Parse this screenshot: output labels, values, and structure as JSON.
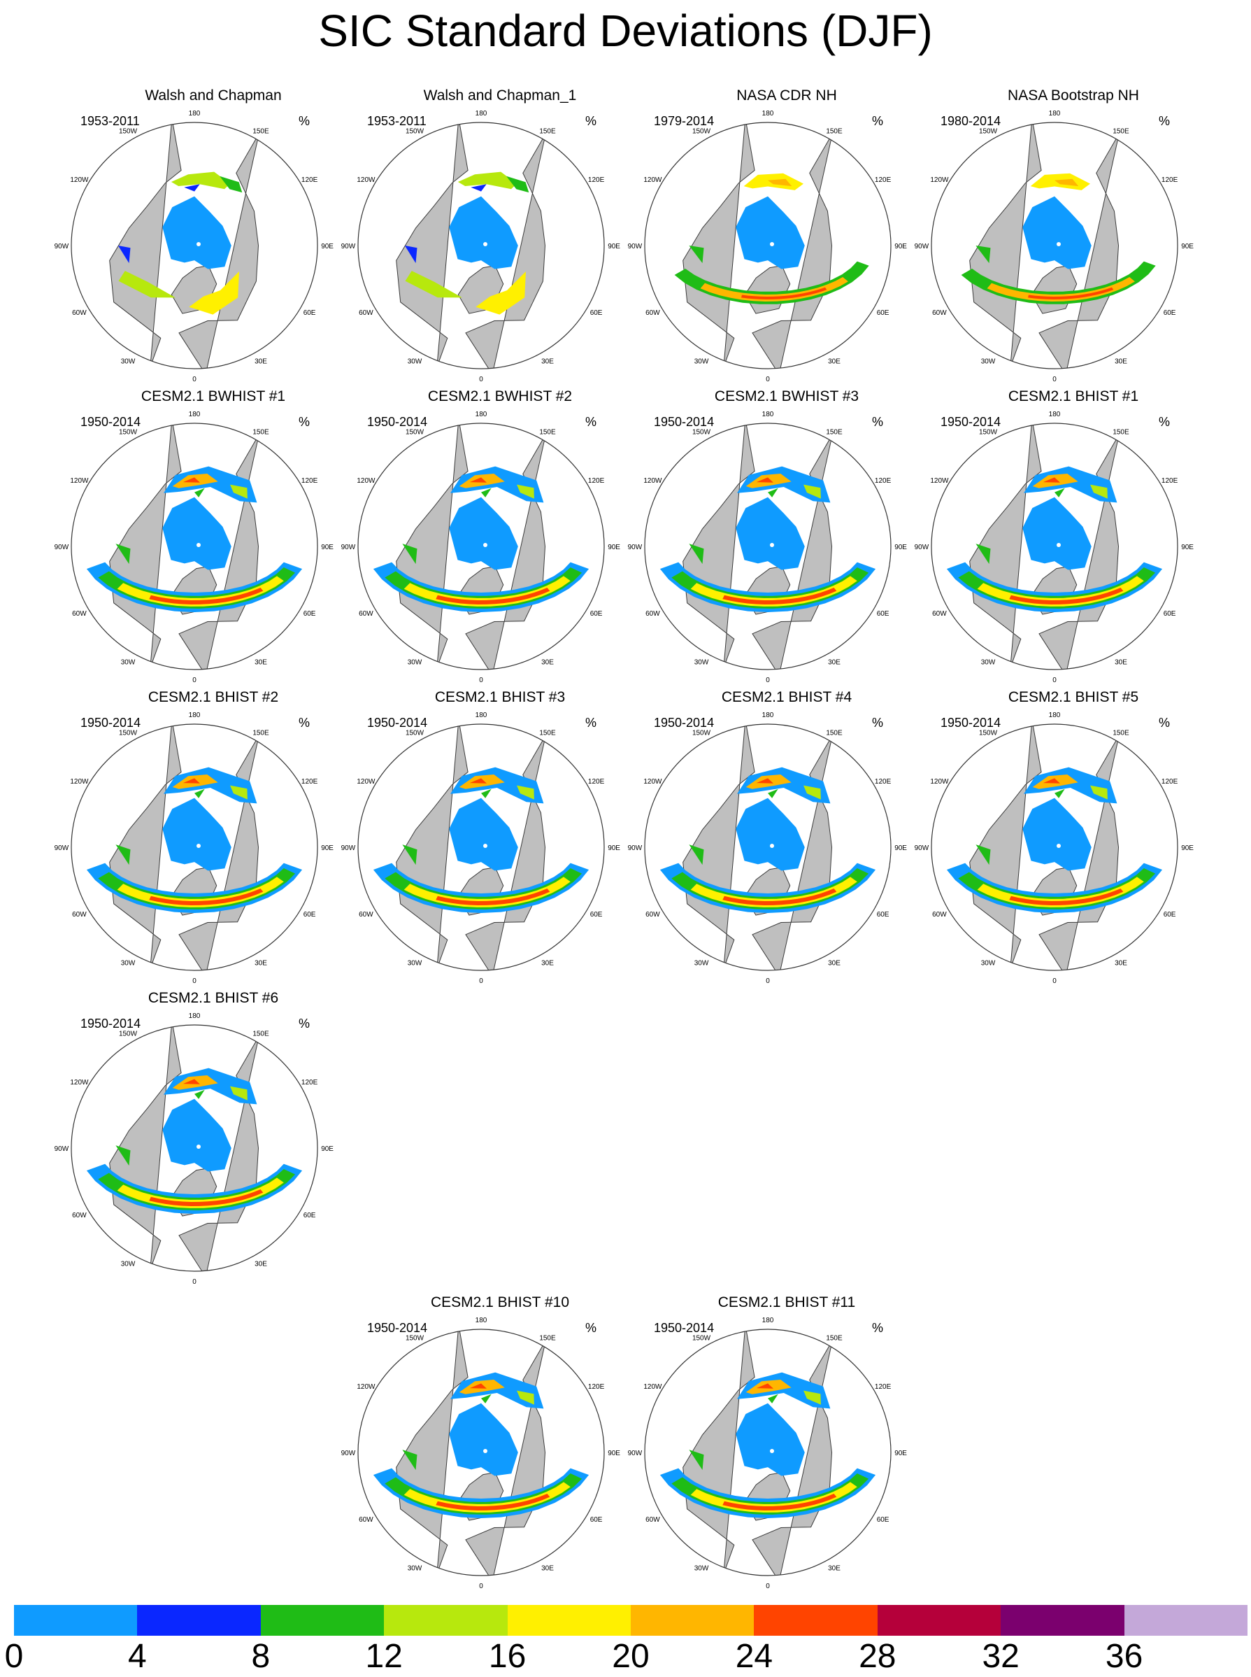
{
  "title": "SIC Standard Deviations (DJF)",
  "unit": "%",
  "lon_labels": [
    "180",
    "150E",
    "120E",
    "90E",
    "60E",
    "30E",
    "0",
    "30W",
    "60W",
    "90W",
    "120W",
    "150W"
  ],
  "colorbar": {
    "ticks": [
      "0",
      "4",
      "8",
      "12",
      "16",
      "20",
      "24",
      "28",
      "32",
      "36"
    ],
    "colors": [
      "#0f9bff",
      "#0a27ff",
      "#1fbc16",
      "#b7e80d",
      "#fff000",
      "#ffb600",
      "#ff4400",
      "#b5003a",
      "#7b006e",
      "#c4a8d9"
    ]
  },
  "colors": {
    "land": "#bfbfbf",
    "coast": "#3a3a3a",
    "ocean": "#ffffff"
  },
  "panels": [
    {
      "title": "Walsh and Chapman",
      "years": "1953-2011",
      "style": "obs"
    },
    {
      "title": "Walsh and Chapman_1",
      "years": "1953-2011",
      "style": "obs"
    },
    {
      "title": "NASA CDR NH",
      "years": "1979-2014",
      "style": "sat"
    },
    {
      "title": "NASA Bootstrap NH",
      "years": "1980-2014",
      "style": "sat"
    },
    {
      "title": "CESM2.1 BWHIST #1",
      "years": "1950-2014",
      "style": "model"
    },
    {
      "title": "CESM2.1 BWHIST #2",
      "years": "1950-2014",
      "style": "model"
    },
    {
      "title": "CESM2.1 BWHIST #3",
      "years": "1950-2014",
      "style": "model"
    },
    {
      "title": "CESM2.1 BHIST #1",
      "years": "1950-2014",
      "style": "model"
    },
    {
      "title": "CESM2.1 BHIST #2",
      "years": "1950-2014",
      "style": "model"
    },
    {
      "title": "CESM2.1 BHIST #3",
      "years": "1950-2014",
      "style": "model"
    },
    {
      "title": "CESM2.1 BHIST #4",
      "years": "1950-2014",
      "style": "model"
    },
    {
      "title": "CESM2.1 BHIST #5",
      "years": "1950-2014",
      "style": "model"
    },
    {
      "title": "CESM2.1 BHIST #6",
      "years": "1950-2014",
      "style": "model"
    },
    {
      "title": "CESM2.1 BHIST #10",
      "years": "1950-2014",
      "style": "model"
    },
    {
      "title": "CESM2.1 BHIST #11",
      "years": "1950-2014",
      "style": "model"
    }
  ]
}
